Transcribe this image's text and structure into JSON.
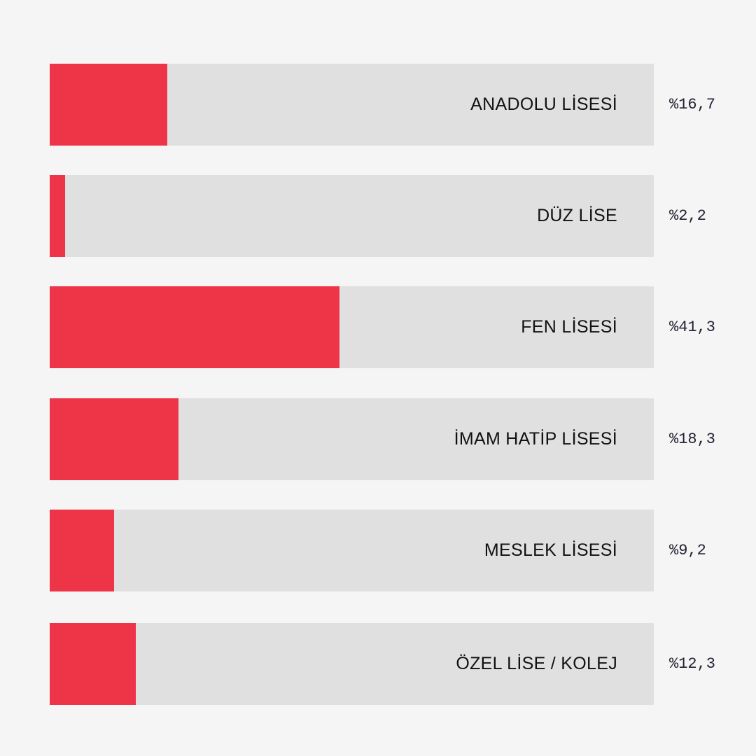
{
  "chart_data": {
    "type": "bar",
    "orientation": "horizontal",
    "categories": [
      "ANADOLU LİSESİ",
      "DÜZ LİSE",
      "FEN LİSESİ",
      "İMAM HATİP LİSESİ",
      "MESLEK LİSESİ",
      "ÖZEL LİSE / KOLEJ"
    ],
    "values": [
      16.7,
      2.2,
      41.3,
      18.3,
      9.2,
      12.3
    ],
    "value_labels": [
      "%16,7",
      "%2,2",
      "%41,3",
      "%18,3",
      "%9,2",
      "%12,3"
    ],
    "xlim": [
      0,
      86
    ],
    "colors": {
      "bar": "#ee3548",
      "track": "#e0e0e0",
      "background": "#f5f5f5"
    },
    "grid": false,
    "legend": "none"
  }
}
